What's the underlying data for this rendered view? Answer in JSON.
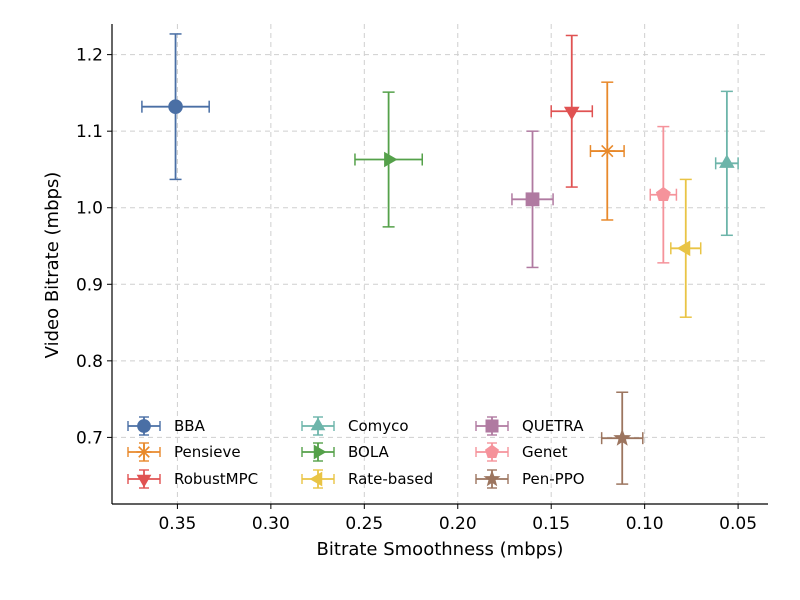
{
  "chart_data": {
    "type": "scatter",
    "title": "",
    "xlabel": "Bitrate Smoothness (mbps)",
    "ylabel": "Video Bitrate (mbps)",
    "x_inverted": true,
    "xlim": [
      0.385,
      0.034
    ],
    "ylim": [
      0.613,
      1.24
    ],
    "xticks": [
      0.35,
      0.3,
      0.25,
      0.2,
      0.15,
      0.1,
      0.05
    ],
    "xtick_labels": [
      "0.35",
      "0.30",
      "0.25",
      "0.20",
      "0.15",
      "0.10",
      "0.05"
    ],
    "yticks": [
      0.7,
      0.8,
      0.9,
      1.0,
      1.1,
      1.2
    ],
    "ytick_labels": [
      "0.7",
      "0.8",
      "0.9",
      "1.0",
      "1.1",
      "1.2"
    ],
    "grid": true,
    "legend_position": "lower-left",
    "series": [
      {
        "name": "BBA",
        "marker": "circle",
        "color": "#4a6fa5",
        "x": 0.351,
        "y": 1.132,
        "xerr": 0.018,
        "yerr": 0.095
      },
      {
        "name": "Pensieve",
        "marker": "asterisk",
        "color": "#e8892b",
        "x": 0.12,
        "y": 1.074,
        "xerr": 0.009,
        "yerr": 0.09
      },
      {
        "name": "RobustMPC",
        "marker": "triangle-down",
        "color": "#e05252",
        "x": 0.139,
        "y": 1.126,
        "xerr": 0.011,
        "yerr": 0.099
      },
      {
        "name": "Comyco",
        "marker": "triangle-up",
        "color": "#6db5aa",
        "x": 0.056,
        "y": 1.058,
        "xerr": 0.006,
        "yerr": 0.094
      },
      {
        "name": "BOLA",
        "marker": "triangle-right",
        "color": "#55a14a",
        "x": 0.237,
        "y": 1.063,
        "xerr": 0.018,
        "yerr": 0.088
      },
      {
        "name": "Rate-based",
        "marker": "triangle-left",
        "color": "#e9c445",
        "x": 0.078,
        "y": 0.947,
        "xerr": 0.008,
        "yerr": 0.09
      },
      {
        "name": "QUETRA",
        "marker": "square",
        "color": "#b07aa1",
        "x": 0.16,
        "y": 1.011,
        "xerr": 0.011,
        "yerr": 0.089
      },
      {
        "name": "Genet",
        "marker": "pentagon",
        "color": "#f5939b",
        "x": 0.09,
        "y": 1.017,
        "xerr": 0.007,
        "yerr": 0.089
      },
      {
        "name": "Pen-PPO",
        "marker": "star",
        "color": "#9c755f",
        "x": 0.112,
        "y": 0.699,
        "xerr": 0.011,
        "yerr": 0.06
      }
    ]
  }
}
